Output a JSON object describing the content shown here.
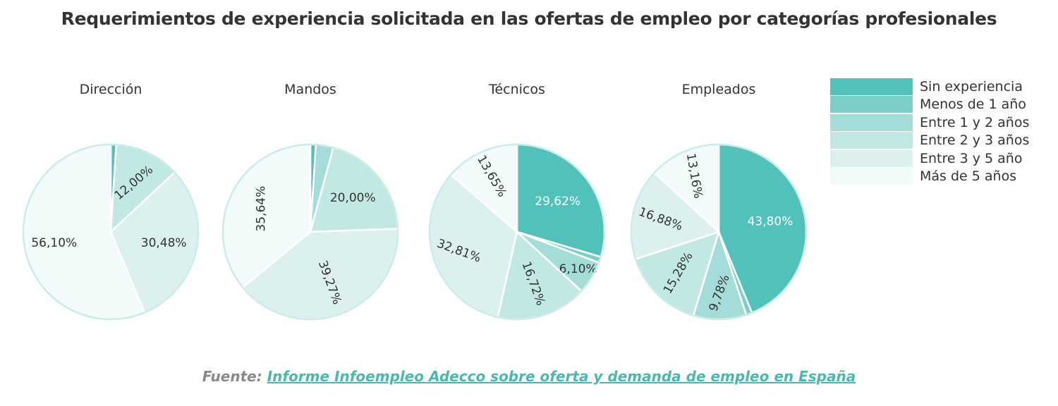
{
  "title": "Requerimientos de experiencia solicitada en las ofertas de empleo por categorías profesionales",
  "colors": [
    "#51c1ba",
    "#7ccfc9",
    "#a3dcd8",
    "#c2e8e4",
    "#dcf1ef",
    "#f2fafa"
  ],
  "stroke_color": "#c9ecea",
  "legend": [
    "Sin experiencia",
    "Menos de 1 año",
    "Entre 1 y 2 años",
    "Entre 2 y 3 años",
    "Entre 3 y 5 año",
    "Más de 5 años"
  ],
  "chart_data": [
    {
      "type": "pie",
      "title": "Dirección",
      "categories": [
        "Sin experiencia",
        "Menos de 1 año",
        "Entre 1 y 2 años",
        "Entre 2 y 3 años",
        "Entre 3 y 5 año",
        "Más de 5 años"
      ],
      "values": [
        1.0,
        0.0,
        0.0,
        12.0,
        30.48,
        56.1
      ],
      "labels": [
        "",
        "",
        "",
        "12,00%",
        "30,48%",
        "56,10%"
      ]
    },
    {
      "type": "pie",
      "title": "Mandos",
      "categories": [
        "Sin experiencia",
        "Menos de 1 año",
        "Entre 1 y 2 años",
        "Entre 2 y 3 años",
        "Entre 3 y 5 año",
        "Más de 5 años"
      ],
      "values": [
        1.0,
        0.0,
        3.2,
        20.0,
        39.27,
        35.64
      ],
      "labels": [
        "",
        "",
        "",
        "20,00%",
        "39,27%",
        "35,64%"
      ]
    },
    {
      "type": "pie",
      "title": "Técnicos",
      "categories": [
        "Sin experiencia",
        "Menos de 1 año",
        "Entre 1 y 2 años",
        "Entre 2 y 3 años",
        "Entre 3 y 5 año",
        "Más de 5 años"
      ],
      "values": [
        29.62,
        1.1,
        6.1,
        16.72,
        32.81,
        13.65
      ],
      "labels": [
        "29,62%",
        "",
        "6,10%",
        "16,72%",
        "32,81%",
        "13,65%"
      ]
    },
    {
      "type": "pie",
      "title": "Empleados",
      "categories": [
        "Sin experiencia",
        "Menos de 1 año",
        "Entre 1 y 2 años",
        "Entre 2 y 3 años",
        "Entre 3 y 5 año",
        "Más de 5 años"
      ],
      "values": [
        43.8,
        1.1,
        9.78,
        15.28,
        16.88,
        13.16
      ],
      "labels": [
        "43,80%",
        "",
        "9,78%",
        "15,28%",
        "16,88%",
        "13,16%"
      ]
    }
  ],
  "source": {
    "prefix": "Fuente:",
    "link_text": "Informe Infoempleo Adecco sobre oferta y demanda de empleo en España"
  }
}
